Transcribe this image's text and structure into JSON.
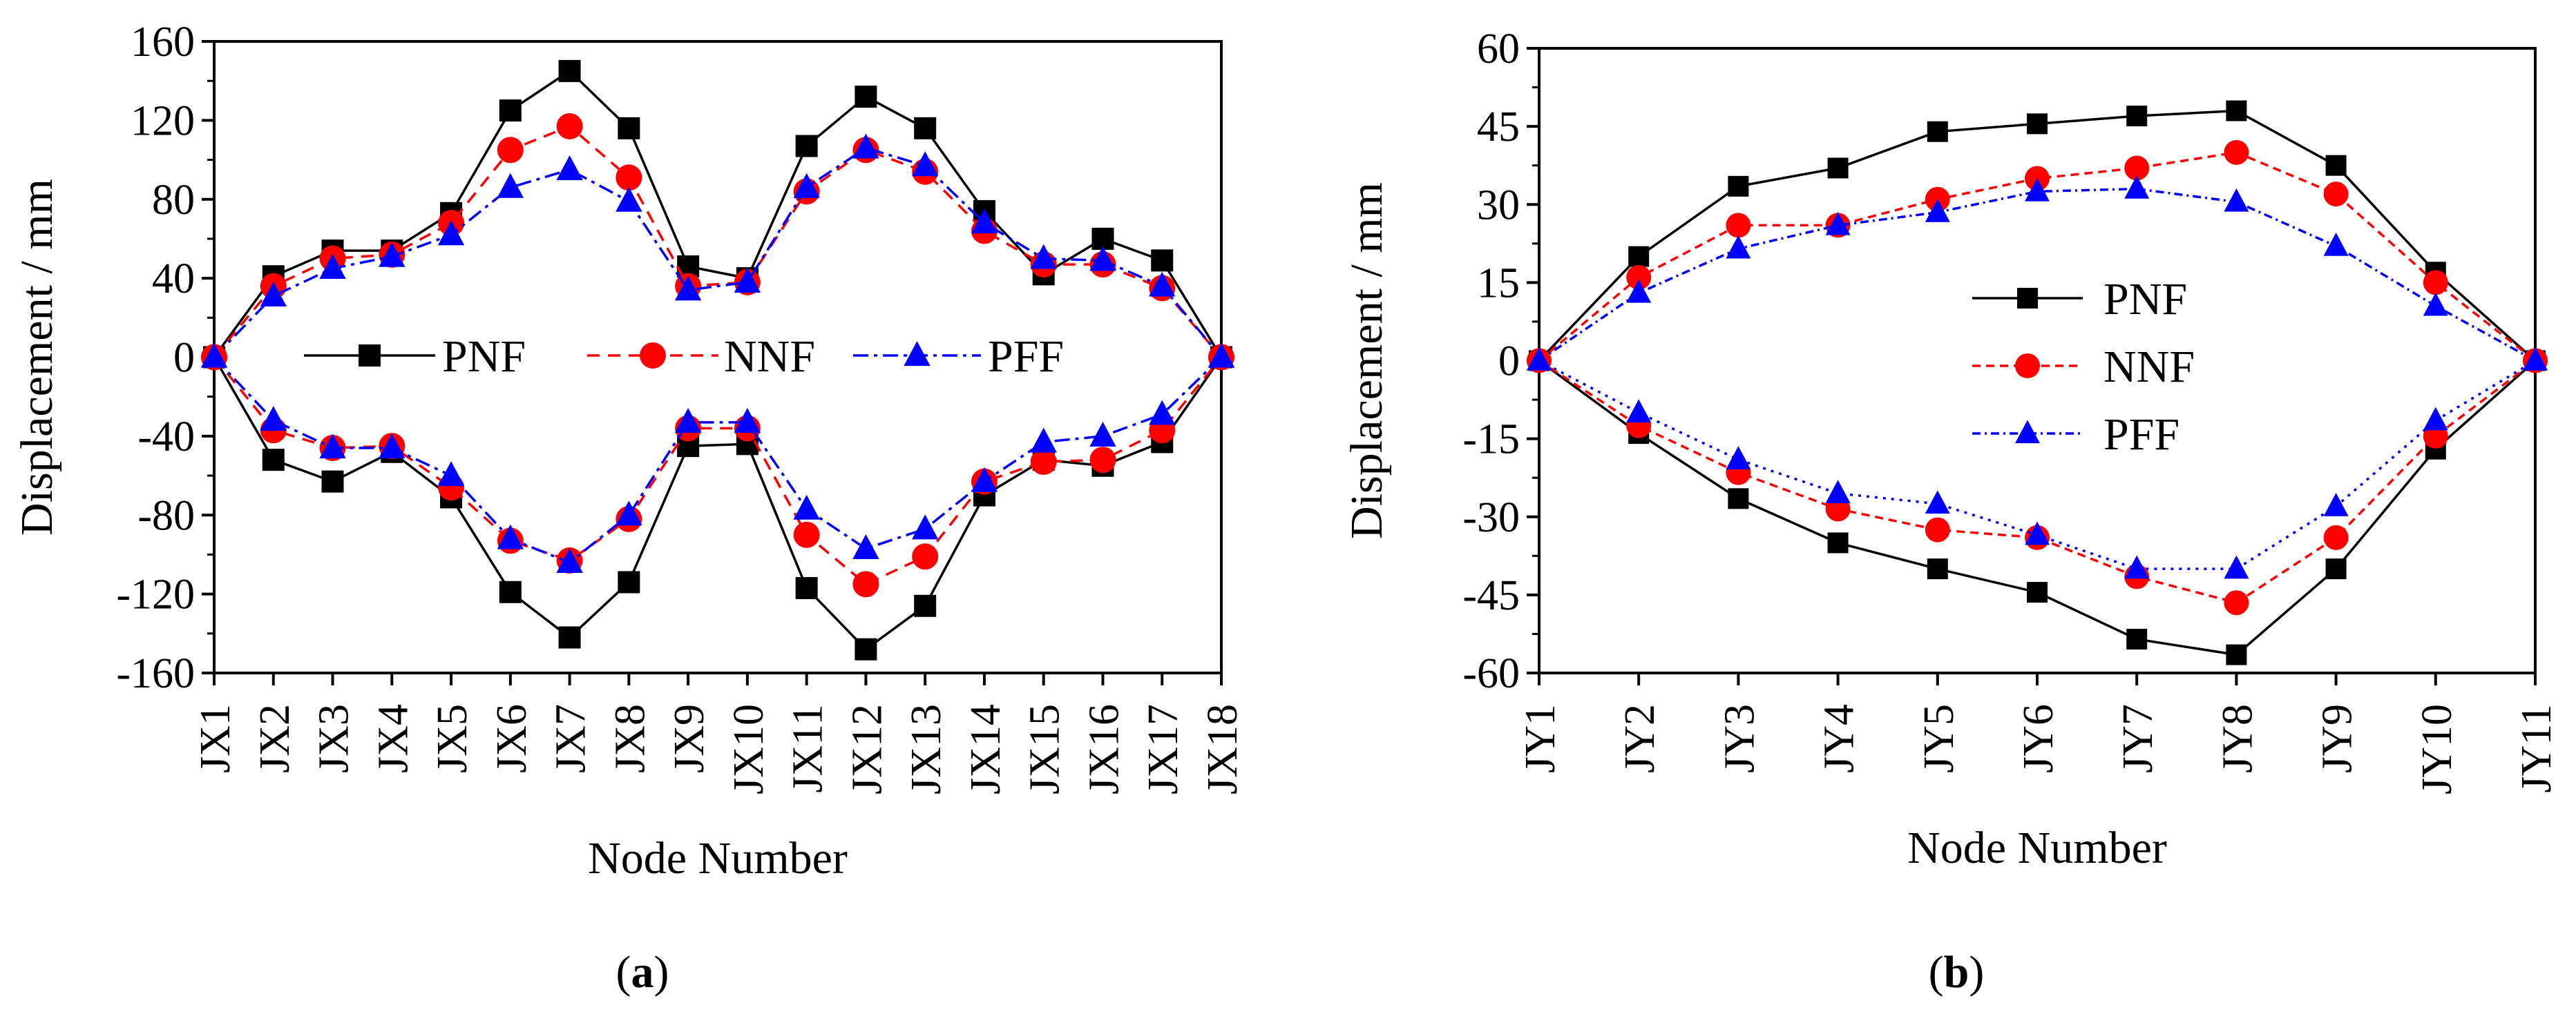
{
  "chart_data": [
    {
      "type": "line",
      "panel_label": "a",
      "caption_open": "(",
      "caption_close": ")",
      "xlabel": "Node Number",
      "ylabel": "Displacement / mm",
      "categories": [
        "JX1",
        "JX2",
        "JX3",
        "JX4",
        "JX5",
        "JX6",
        "JX7",
        "JX8",
        "JX9",
        "JX10",
        "JX11",
        "JX12",
        "JX13",
        "JX14",
        "JX15",
        "JX16",
        "JX17",
        "JX18"
      ],
      "ylim": [
        -160,
        160
      ],
      "yticks": [
        160,
        120,
        80,
        40,
        0,
        -40,
        -80,
        -120,
        -160
      ],
      "grid": false,
      "legend_position": "center-row",
      "series": [
        {
          "name": "PNF",
          "branch": "upper",
          "color": "#000000",
          "dash": "",
          "marker": "square",
          "values": [
            0,
            41,
            54,
            54,
            73,
            125,
            145,
            116,
            46,
            40,
            107,
            132,
            116,
            74,
            42,
            60,
            49,
            0
          ]
        },
        {
          "name": "NNF",
          "branch": "upper",
          "color": "#ff0000",
          "dash": "18,12",
          "marker": "circle",
          "values": [
            0,
            36,
            50,
            52,
            68,
            105,
            117,
            91,
            36,
            38,
            84,
            105,
            94,
            64,
            47,
            47,
            35,
            0
          ]
        },
        {
          "name": "PFF",
          "branch": "upper",
          "color": "#0000ff",
          "dash": "22,8,5,8",
          "marker": "triangle",
          "values": [
            0,
            31,
            45,
            51,
            62,
            86,
            95,
            79,
            34,
            38,
            86,
            106,
            97,
            68,
            50,
            49,
            36,
            0
          ]
        },
        {
          "name": "PNF",
          "branch": "lower",
          "color": "#000000",
          "dash": "",
          "marker": "square",
          "values": [
            0,
            -52,
            -63,
            -48,
            -71,
            -119,
            -142,
            -114,
            -45,
            -44,
            -117,
            -148,
            -126,
            -70,
            -52,
            -55,
            -43,
            0
          ]
        },
        {
          "name": "NNF",
          "branch": "lower",
          "color": "#ff0000",
          "dash": "18,12",
          "marker": "circle",
          "values": [
            0,
            -37,
            -46,
            -45,
            -66,
            -93,
            -103,
            -82,
            -36,
            -36,
            -90,
            -115,
            -101,
            -63,
            -53,
            -52,
            -37,
            0
          ]
        },
        {
          "name": "PFF",
          "branch": "lower",
          "color": "#0000ff",
          "dash": "22,8,5,8",
          "marker": "triangle",
          "values": [
            0,
            -32,
            -46,
            -46,
            -60,
            -92,
            -104,
            -80,
            -33,
            -33,
            -77,
            -97,
            -87,
            -63,
            -43,
            -40,
            -29,
            0
          ]
        }
      ]
    },
    {
      "type": "line",
      "panel_label": "b",
      "caption_open": "(",
      "caption_close": ")",
      "xlabel": "Node Number",
      "ylabel": "Displacement / mm",
      "categories": [
        "JY1",
        "JY2",
        "JY3",
        "JY4",
        "JY5",
        "JY6",
        "JY7",
        "JY8",
        "JY9",
        "JY10",
        "JY11"
      ],
      "ylim": [
        -60,
        60
      ],
      "yticks": [
        60,
        45,
        30,
        15,
        0,
        -15,
        -30,
        -45,
        -60
      ],
      "grid": false,
      "legend_position": "center-left",
      "series": [
        {
          "name": "PNF",
          "branch": "upper",
          "color": "#000000",
          "dash": "",
          "marker": "square",
          "values": [
            0,
            20,
            33.5,
            37,
            44,
            45.5,
            47,
            48,
            37.5,
            17,
            0
          ]
        },
        {
          "name": "NNF",
          "branch": "upper",
          "color": "#ff0000",
          "dash": "12,8",
          "marker": "circle",
          "values": [
            0,
            16,
            26,
            26,
            31,
            35,
            37,
            40,
            32,
            15,
            0
          ]
        },
        {
          "name": "PFF",
          "branch": "upper",
          "color": "#0000ff",
          "dash": "12,6,3,6",
          "marker": "triangle",
          "values": [
            0,
            13,
            21.5,
            26,
            28.5,
            32.5,
            33,
            30.5,
            22,
            10.5,
            0
          ]
        },
        {
          "name": "PNF",
          "branch": "lower",
          "color": "#000000",
          "dash": "",
          "marker": "square",
          "values": [
            0,
            -14,
            -26.5,
            -35,
            -40,
            -44.5,
            -53.5,
            -56.5,
            -40,
            -17,
            0
          ]
        },
        {
          "name": "NNF",
          "branch": "lower",
          "color": "#ff0000",
          "dash": "12,8",
          "marker": "circle",
          "values": [
            0,
            -12.5,
            -21.5,
            -28.5,
            -32.5,
            -34,
            -41.5,
            -46.5,
            -34,
            -14.5,
            0
          ]
        },
        {
          "name": "PFF",
          "branch": "lower",
          "color": "#0000ff",
          "dash": "4,8",
          "marker": "triangle",
          "values": [
            0,
            -10,
            -19,
            -25.5,
            -27.5,
            -33.5,
            -40,
            -40,
            -28,
            -11.5,
            0
          ]
        }
      ]
    }
  ]
}
